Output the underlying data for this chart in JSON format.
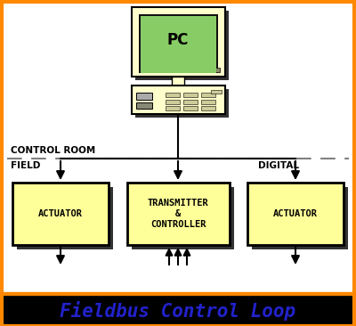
{
  "title": "Fieldbus Control Loop",
  "title_color": "#2222cc",
  "title_bg": "#000000",
  "title_fontsize": 15,
  "bg_color": "#ffffff",
  "border_color": "#ff8800",
  "box_fill": "#ffff99",
  "box_fill2": "#ffffcc",
  "box_edge": "#000000",
  "shadow_color": "#333333",
  "screen_fill": "#88cc66",
  "screen_edge": "#111111",
  "control_room_label": "CONTROL ROOM",
  "field_label": "FIELD",
  "digital_label": "DIGITAL",
  "box_labels": [
    "ACTUATOR",
    "TRANSMITTER\n&\nCONTROLLER",
    "ACTUATOR"
  ],
  "pc_label": "PC",
  "figw": 4.0,
  "figh": 3.66,
  "dpi": 100
}
